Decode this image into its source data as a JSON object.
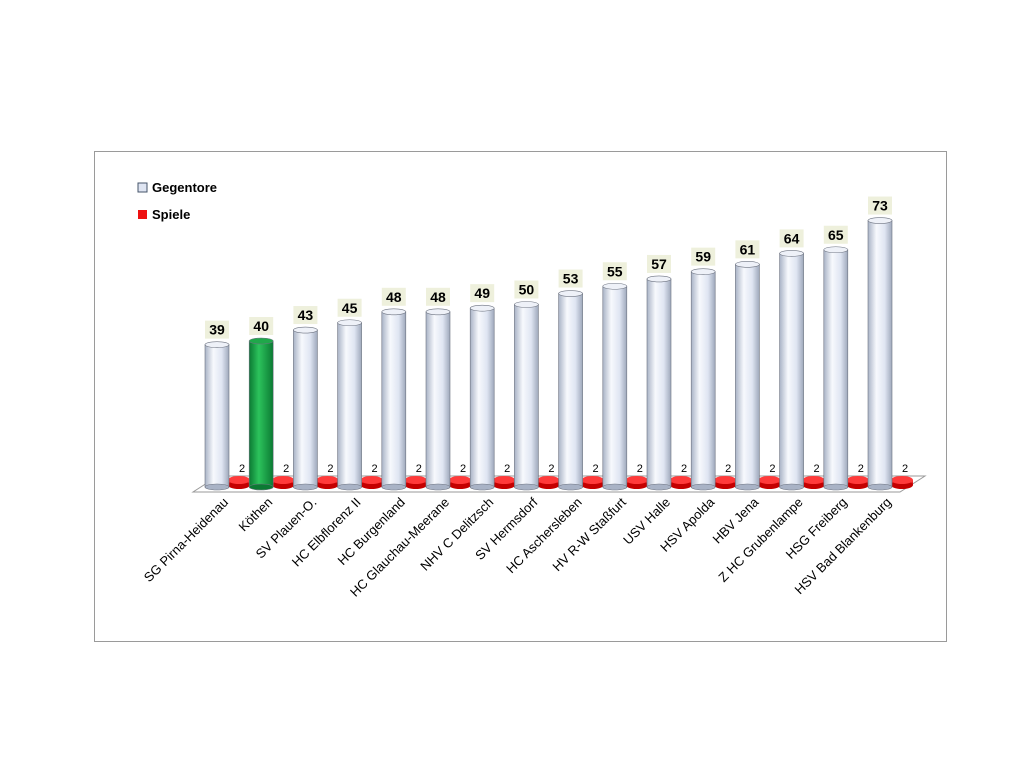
{
  "colors": {
    "gegentore": "#dfe5f2",
    "gegentore_edge": "#5a5a5a",
    "highlight": "#1fa84a",
    "spiele": "#ee1111",
    "label_bg": "#eef0dc"
  },
  "chart_data": {
    "type": "bar",
    "legend_position": "top-left",
    "categories": [
      "SG Pirna-Heidenau",
      "Köthen",
      "SV Plauen-O.",
      "HC Elbflorenz II",
      "HC Burgenland",
      "HC Glauchau-Meerane",
      "NHV C Delitzsch",
      "SV Hermsdorf",
      "HC Aschersleben",
      "HV R-W Staßfurt",
      "USV Halle",
      "HSV Apolda",
      "HBV Jena",
      "Z HC Grubenlampe",
      "HSG Freiberg",
      "HSV Bad Blankenburg"
    ],
    "highlight_category": "Köthen",
    "series": [
      {
        "name": "Gegentore",
        "values": [
          39,
          40,
          43,
          45,
          48,
          48,
          49,
          50,
          53,
          55,
          57,
          59,
          61,
          64,
          65,
          73
        ]
      },
      {
        "name": "Spiele",
        "values": [
          2,
          2,
          2,
          2,
          2,
          2,
          2,
          2,
          2,
          2,
          2,
          2,
          2,
          2,
          2,
          2
        ]
      }
    ]
  }
}
